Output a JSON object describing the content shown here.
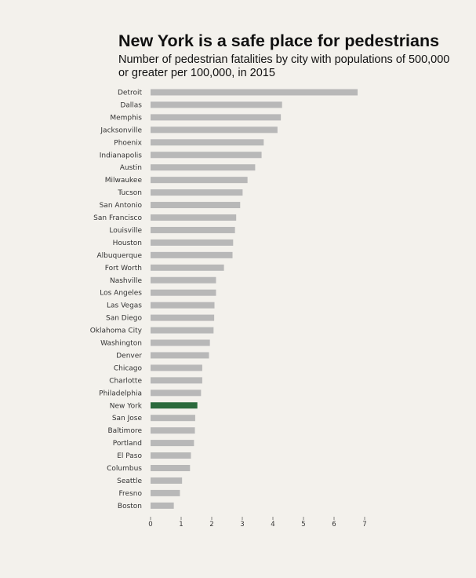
{
  "chart_data": {
    "type": "bar",
    "orientation": "horizontal",
    "title": "New York is a safe place for pedestrians",
    "subtitle": "Number of pedestrian fatalities by city with populations of 500,000 or greater per 100,000, in 2015",
    "xlabel": "",
    "ylabel": "",
    "xlim": [
      0,
      7
    ],
    "ticks": [
      "0",
      "1",
      "2",
      "3",
      "4",
      "5",
      "6",
      "7"
    ],
    "grid": false,
    "bar_color": "#b8b8b8",
    "highlight_color": "#2b6a3c",
    "highlight": "New York",
    "categories": [
      "Detroit",
      "Dallas",
      "Memphis",
      "Jacksonville",
      "Phoenix",
      "Indianapolis",
      "Austin",
      "Milwaukee",
      "Tucson",
      "San Antonio",
      "San Francisco",
      "Louisville",
      "Houston",
      "Albuquerque",
      "Fort Worth",
      "Nashville",
      "Los Angeles",
      "Las Vegas",
      "San Diego",
      "Oklahoma City",
      "Washington",
      "Denver",
      "Chicago",
      "Charlotte",
      "Philadelphia",
      "New York",
      "San Jose",
      "Baltimore",
      "Portland",
      "El Paso",
      "Columbus",
      "Seattle",
      "Fresno",
      "Boston"
    ],
    "values": [
      6.77,
      4.3,
      4.26,
      4.15,
      3.7,
      3.63,
      3.42,
      3.17,
      3.01,
      2.93,
      2.8,
      2.76,
      2.7,
      2.68,
      2.4,
      2.14,
      2.14,
      2.09,
      2.08,
      2.06,
      1.94,
      1.91,
      1.69,
      1.69,
      1.65,
      1.53,
      1.46,
      1.45,
      1.42,
      1.32,
      1.29,
      1.03,
      0.96,
      0.76
    ]
  }
}
